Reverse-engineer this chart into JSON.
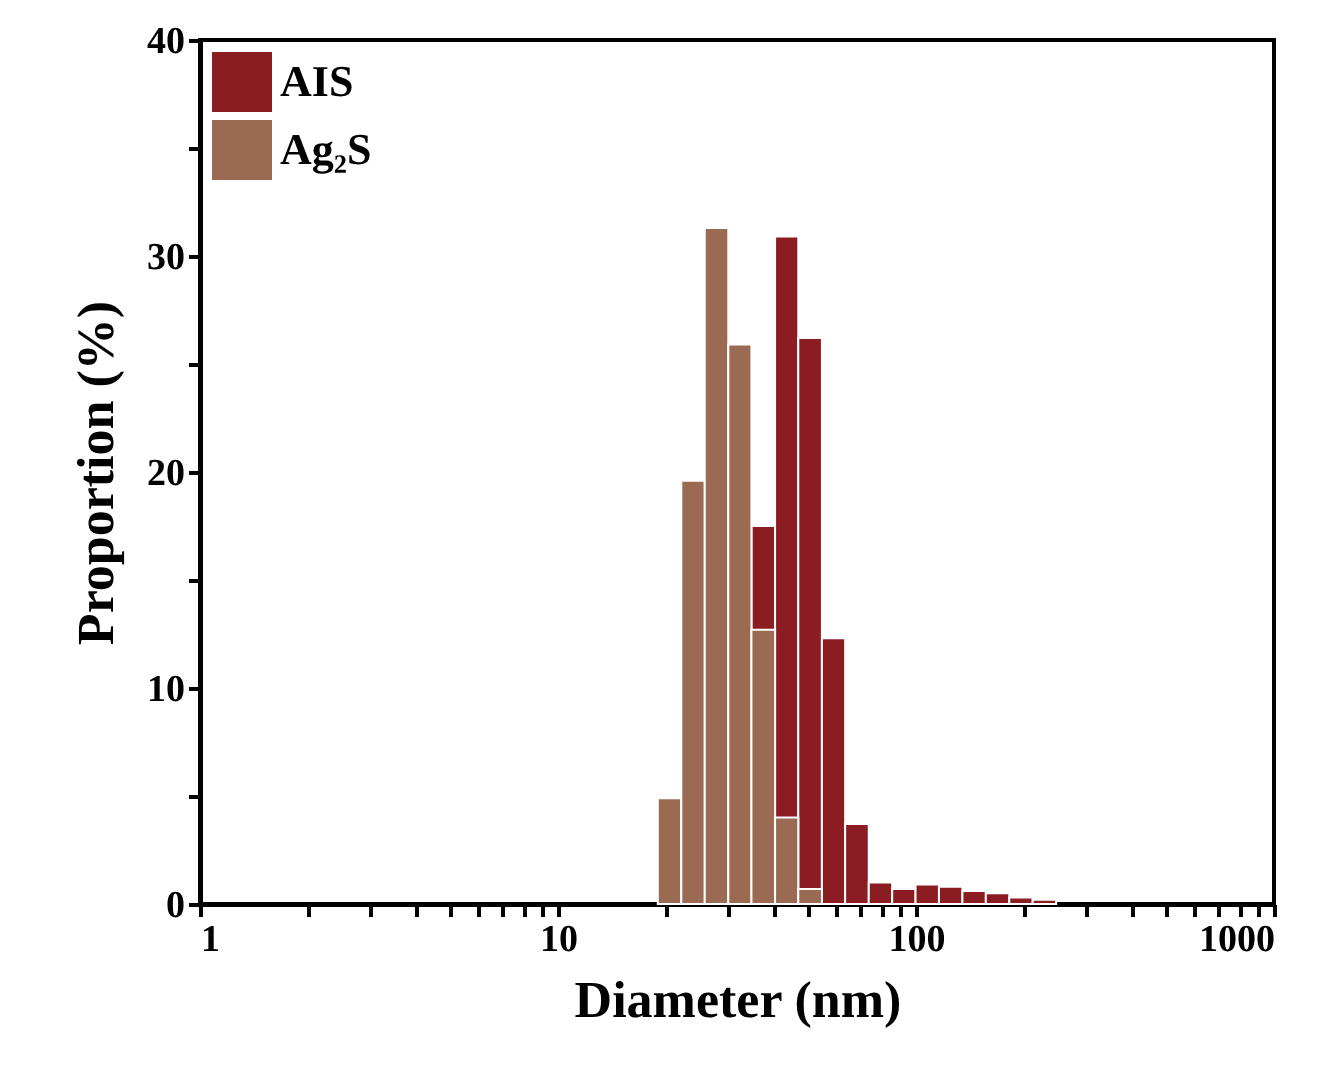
{
  "chart_data": {
    "type": "histogram",
    "xlabel": "Diameter (nm)",
    "ylabel": "Proportion (%)",
    "log": "x",
    "legend": "top left",
    "xlim": [
      1,
      1000
    ],
    "ylim": [
      0,
      40
    ],
    "xticks": [
      1,
      {
        "value": 2,
        "label": null
      },
      {
        "value": 3,
        "label": null
      },
      {
        "value": 4,
        "label": null
      },
      {
        "value": 5,
        "label": null
      },
      {
        "value": 6,
        "label": null
      },
      {
        "value": 7,
        "label": null
      },
      {
        "value": 8,
        "label": null
      },
      {
        "value": 9,
        "label": null
      },
      10,
      {
        "value": 20,
        "label": null
      },
      {
        "value": 30,
        "label": null
      },
      {
        "value": 40,
        "label": null
      },
      {
        "value": 50,
        "label": null
      },
      {
        "value": 60,
        "label": null
      },
      {
        "value": 70,
        "label": null
      },
      {
        "value": 80,
        "label": null
      },
      {
        "value": 90,
        "label": null
      },
      100,
      {
        "value": 200,
        "label": null
      },
      {
        "value": 300,
        "label": null
      },
      {
        "value": 400,
        "label": null
      },
      {
        "value": 500,
        "label": null
      },
      {
        "value": 600,
        "label": null
      },
      {
        "value": 700,
        "label": null
      },
      {
        "value": 800,
        "label": null
      },
      {
        "value": 900,
        "label": null
      },
      1000
    ],
    "yticks": [
      0,
      {
        "value": 5,
        "label": null
      },
      10,
      {
        "value": 15,
        "label": null
      },
      20,
      {
        "value": 25,
        "label": null
      },
      30,
      {
        "value": 35,
        "label": null
      },
      40
    ],
    "bins": [
      19.0,
      22.1,
      25.7,
      29.9,
      34.7,
      40.4,
      46.9,
      54.6,
      63.4,
      73.8,
      85.8,
      99.7,
      115.9,
      134.8,
      156.7,
      182.2,
      211.8,
      246.3
    ],
    "series": [
      {
        "name": "AIS",
        "color": "#8b1c22",
        "values": [
          null,
          null,
          null,
          null,
          17.5,
          30.9,
          26.2,
          12.3,
          3.7,
          1.0,
          0.7,
          0.9,
          0.8,
          0.6,
          0.5,
          0.3,
          0.2
        ]
      },
      {
        "name": "Ag₂S",
        "color": "#9b6a53",
        "values": [
          4.9,
          19.6,
          31.3,
          25.9,
          12.7,
          4.0,
          0.7,
          null,
          null,
          null,
          null,
          null,
          null,
          null,
          null,
          null,
          null
        ]
      }
    ]
  }
}
